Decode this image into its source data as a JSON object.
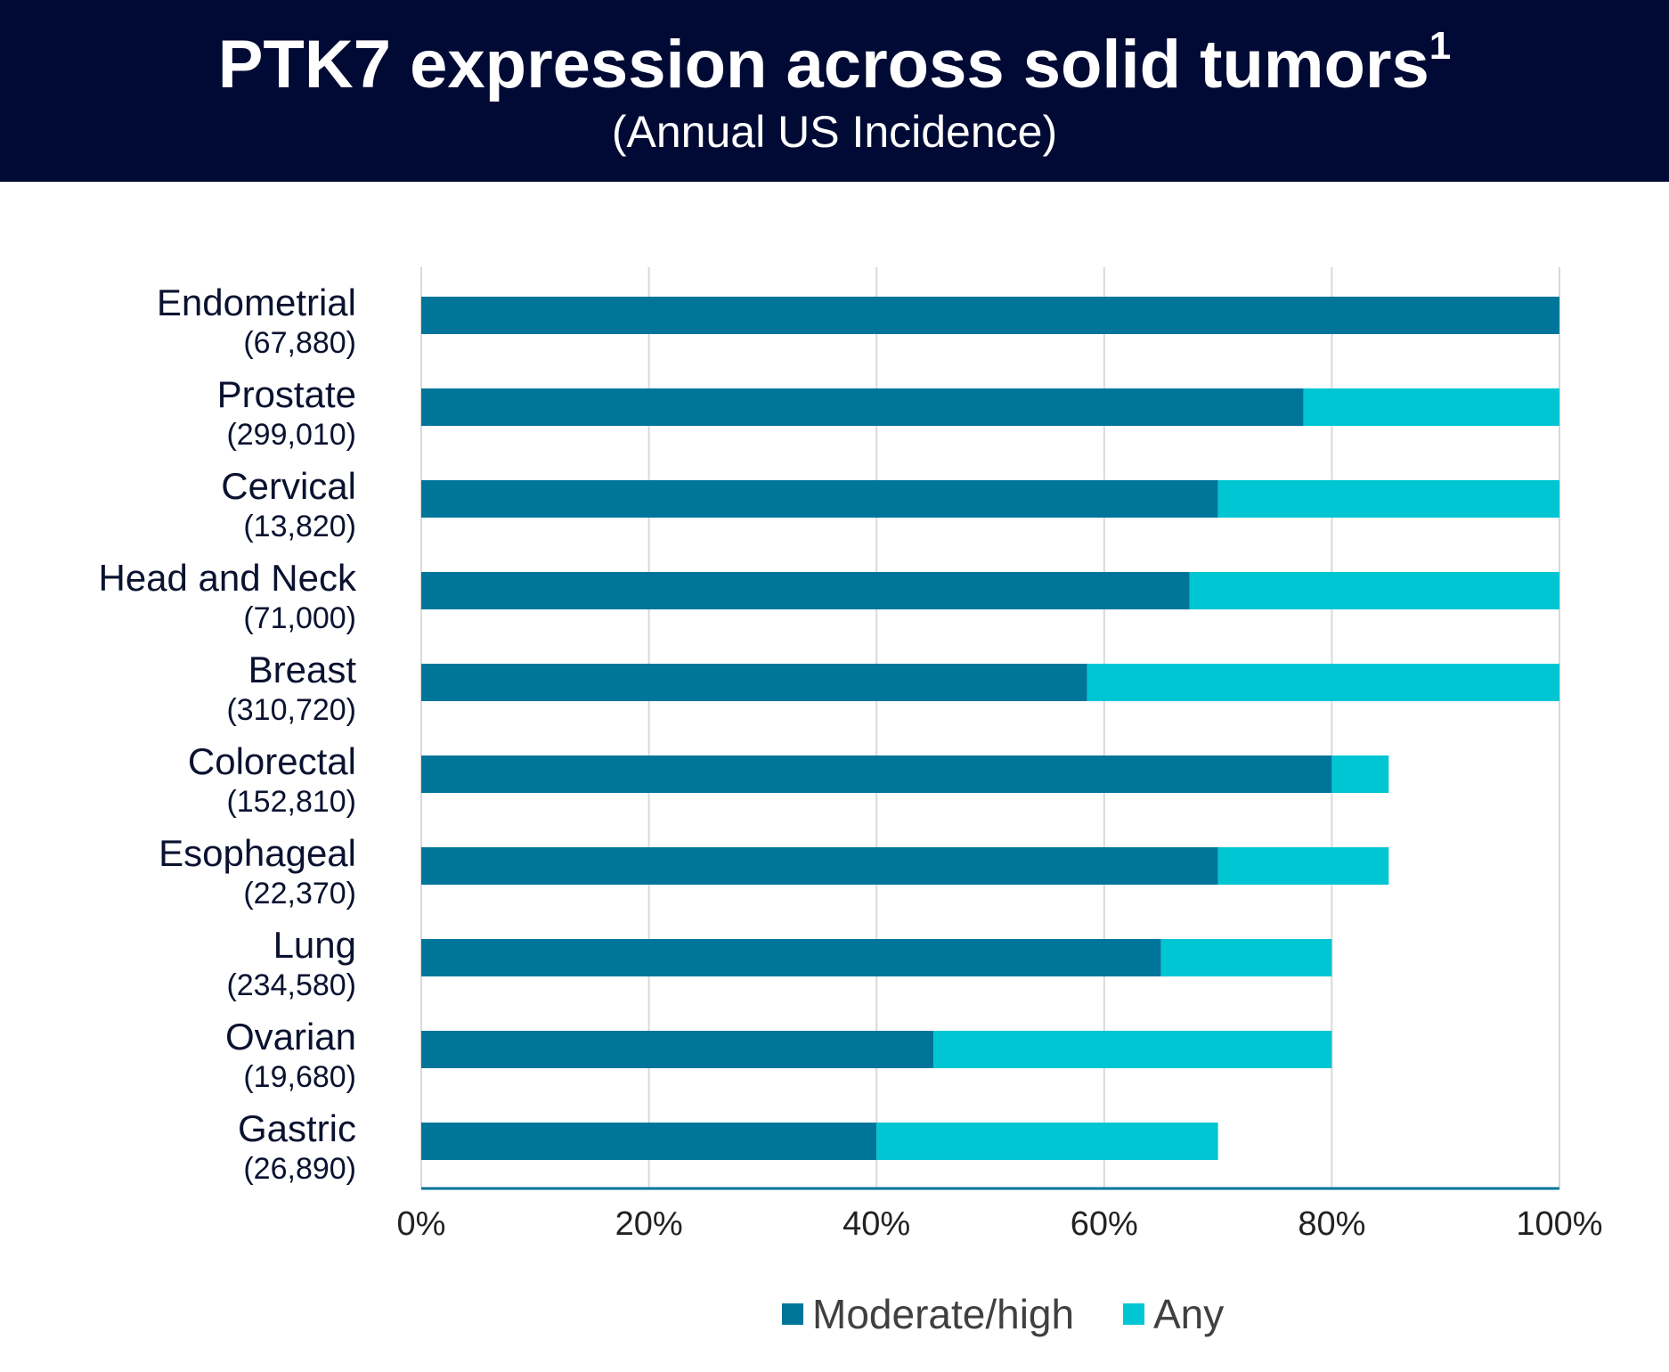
{
  "header": {
    "title": "PTK7 expression across solid tumors",
    "title_superscript": "1",
    "subtitle": "(Annual US Incidence)"
  },
  "colors": {
    "header_bg": "#000a34",
    "moderate_high": "#00759a",
    "any": "#00c5d3",
    "label_text": "#0a1230",
    "grid": "#d9d9d9",
    "axis": "#00759a"
  },
  "chart_data": {
    "type": "bar",
    "orientation": "horizontal",
    "stacked": true,
    "categories": [
      "Endometrial",
      "Prostate",
      "Cervical",
      "Head and Neck",
      "Breast",
      "Colorectal",
      "Esophageal",
      "Lung",
      "Ovarian",
      "Gastric"
    ],
    "incidence_labels": [
      "(67,880)",
      "(299,010)",
      "(13,820)",
      "(71,000)",
      "(310,720)",
      "(152,810)",
      "(22,370)",
      "(234,580)",
      "(19,680)",
      "(26,890)"
    ],
    "series": [
      {
        "name": "Moderate/high",
        "values": [
          100,
          77.5,
          70,
          67.5,
          58.5,
          80,
          70,
          65,
          45,
          40
        ]
      },
      {
        "name": "Any",
        "values": [
          0,
          22.5,
          30,
          32.5,
          41.5,
          5,
          15,
          15,
          35,
          30
        ]
      }
    ],
    "xlim": [
      0,
      100
    ],
    "x_ticks": [
      "0%",
      "20%",
      "40%",
      "60%",
      "80%",
      "100%"
    ],
    "grid": true,
    "legend": [
      "Moderate/high",
      "Any"
    ],
    "legend_position": "bottom"
  }
}
